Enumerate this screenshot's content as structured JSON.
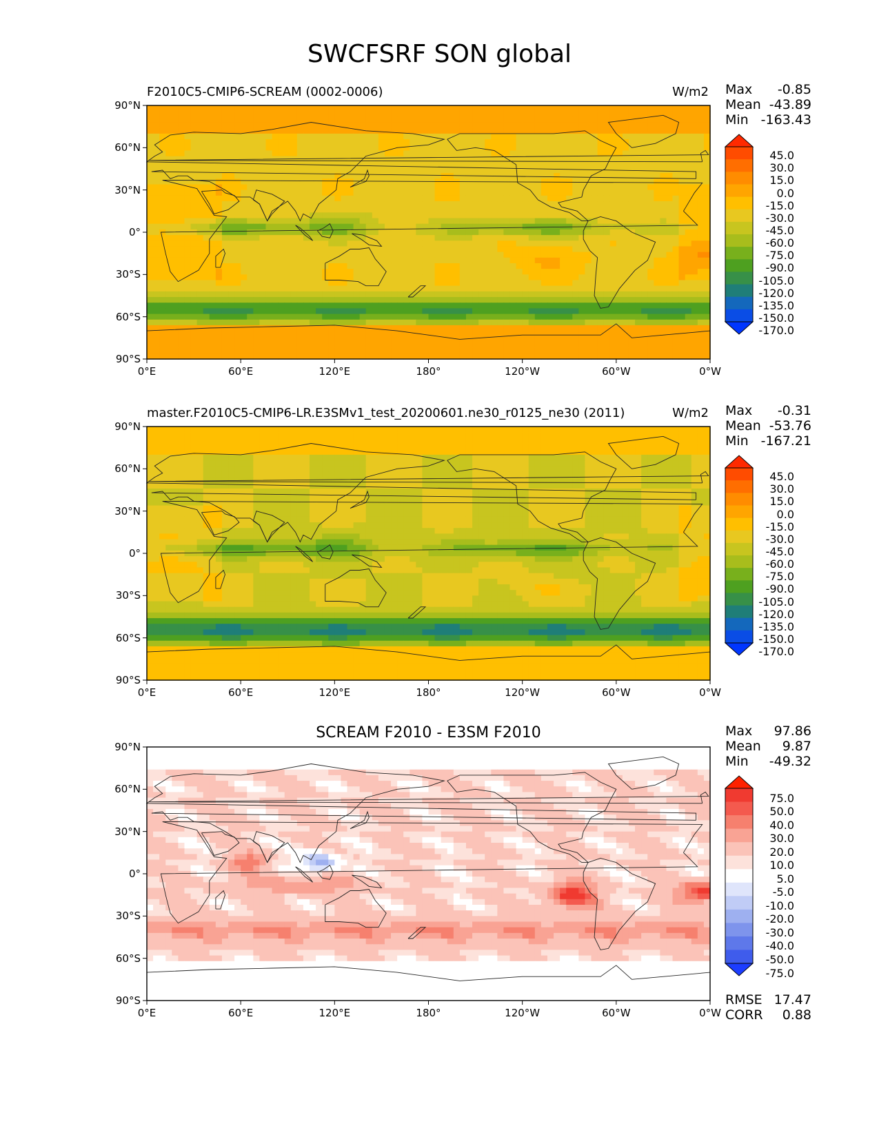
{
  "title": "SWCFSRF SON global",
  "units": "W/m2",
  "lat_ticks": [
    "90°N",
    "60°N",
    "30°N",
    "0°",
    "30°S",
    "60°S",
    "90°S"
  ],
  "lon_ticks": [
    "0°E",
    "60°E",
    "120°E",
    "180°",
    "120°W",
    "60°W",
    "0°W"
  ],
  "stat_labels": {
    "max": "Max",
    "mean": "Mean",
    "min": "Min",
    "rmse": "RMSE",
    "corr": "CORR"
  },
  "panels": [
    {
      "left_title": "F2010C5-CMIP6-SCREAM (0002-0006)",
      "center_title": "",
      "right_title": "W/m2",
      "max": "-0.85",
      "mean": "-43.89",
      "min": "-163.43",
      "colorbar_levels": [
        "45.0",
        "30.0",
        "15.0",
        "0.0",
        "-15.0",
        "-30.0",
        "-45.0",
        "-60.0",
        "-75.0",
        "-90.0",
        "-105.0",
        "-120.0",
        "-135.0",
        "-150.0",
        "-170.0"
      ],
      "colorbar_colors": [
        "#ff2a00",
        "#ff4c00",
        "#ff6e00",
        "#ff8c00",
        "#ffa500",
        "#ffbf00",
        "#e8c820",
        "#c8c51f",
        "#a8bd1c",
        "#78b01c",
        "#4ea020",
        "#379048",
        "#1f7e78",
        "#1468bc",
        "#0a4de6",
        "#0036ff"
      ]
    },
    {
      "left_title": "master.F2010C5-CMIP6-LR.E3SMv1_test_20200601.ne30_r0125_ne30 (2011)",
      "center_title": "",
      "right_title": "W/m2",
      "max": "-0.31",
      "mean": "-53.76",
      "min": "-167.21",
      "colorbar_levels": [
        "45.0",
        "30.0",
        "15.0",
        "0.0",
        "-15.0",
        "-30.0",
        "-45.0",
        "-60.0",
        "-75.0",
        "-90.0",
        "-105.0",
        "-120.0",
        "-135.0",
        "-150.0",
        "-170.0"
      ],
      "colorbar_colors": [
        "#ff2a00",
        "#ff4c00",
        "#ff6e00",
        "#ff8c00",
        "#ffa500",
        "#ffbf00",
        "#e8c820",
        "#c8c51f",
        "#a8bd1c",
        "#78b01c",
        "#4ea020",
        "#379048",
        "#1f7e78",
        "#1468bc",
        "#0a4de6",
        "#0036ff"
      ]
    },
    {
      "left_title": "",
      "center_title": "SCREAM F2010 - E3SM F2010",
      "right_title": "",
      "max": "97.86",
      "mean": "9.87",
      "min": "-49.32",
      "rmse": "17.47",
      "corr": "0.88",
      "colorbar_levels": [
        "75.0",
        "50.0",
        "40.0",
        "30.0",
        "20.0",
        "10.0",
        "5.0",
        "-5.0",
        "-10.0",
        "-20.0",
        "-30.0",
        "-40.0",
        "-50.0",
        "-75.0"
      ],
      "colorbar_colors": [
        "#ff2200",
        "#f03a30",
        "#f45a4e",
        "#f6806e",
        "#f9a394",
        "#fbc3b8",
        "#fde2db",
        "#ffffff",
        "#dfe5fb",
        "#c0ccf6",
        "#9eb0f0",
        "#7e94ec",
        "#5e78ea",
        "#3f5cec",
        "#1c3dff"
      ]
    }
  ]
}
